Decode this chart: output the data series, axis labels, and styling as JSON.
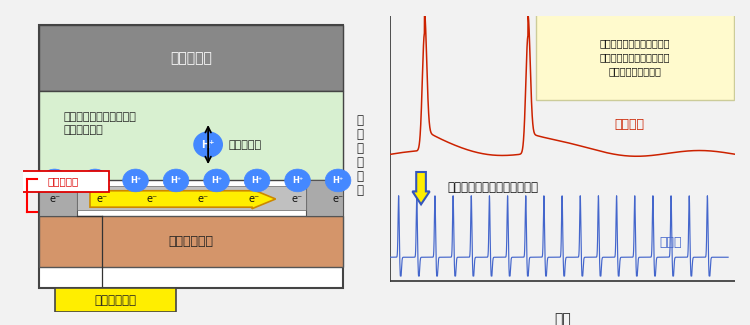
{
  "bg_color": "#f0f0f0",
  "left_panel": {
    "gate_label": "ゲート電極",
    "gate_bg": "#888888",
    "gate_text_color": "#ffffff",
    "membrane_label": "多孔質イットリア安定化\nジルコニア膜",
    "membrane_bg_top": "#c8e8c0",
    "membrane_bg_bot": "#e8f8e0",
    "h_ion_label": "水素イオン",
    "edl_label": "電気二重層",
    "edl_color": "#dd0000",
    "diamond_label": "ダイヤモンド",
    "diamond_bg": "#d4956a",
    "arrow_color": "#ffee00",
    "arrow_edge": "#cc8800",
    "drain_label": "ドレイン電流",
    "drain_bg": "#ffee00",
    "channel_bg": "#bbbbbb",
    "contact_bg": "#999999"
  },
  "right_panel": {
    "title_text": "電気二重層トランジスタの\nニューロモルフィック動作\n課題：低い動作速度",
    "title_bg": "#fffacd",
    "title_border": "#cccc99",
    "conventional_label": "従来技術",
    "conventional_color": "#cc2200",
    "new_label": "本研究",
    "new_color": "#4466cc",
    "arrow_text": "水素イオン伝導による高速化",
    "down_arrow_color": "#ffee00",
    "down_arrow_border": "#3355bb",
    "ylabel": "ドレイン電流",
    "xlabel": "時間",
    "axis_color": "#333333"
  }
}
